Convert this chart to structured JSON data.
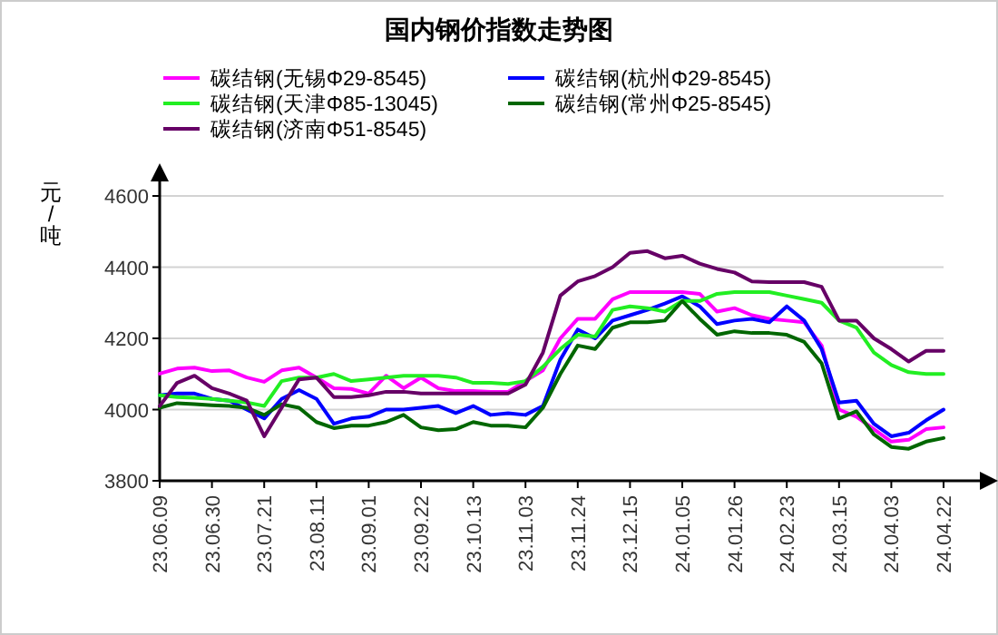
{
  "chart_data": {
    "type": "line",
    "title": "国内钢价指数走势图",
    "ylabel": "元/吨",
    "categories": [
      "23.06.09",
      null,
      null,
      "23.06.30",
      null,
      null,
      "23.07.21",
      null,
      null,
      "23.08.11",
      null,
      null,
      "23.09.01",
      null,
      null,
      "23.09.22",
      null,
      null,
      "23.10.13",
      null,
      null,
      "23.11.03",
      null,
      null,
      "23.11.24",
      null,
      null,
      "23.12.15",
      null,
      null,
      "24.01.05",
      null,
      null,
      "24.01.26",
      null,
      null,
      "24.02.23",
      null,
      null,
      "24.03.15",
      null,
      null,
      "24.04.03",
      null,
      null,
      "24.04.22"
    ],
    "series": [
      {
        "name": "碳结钢(无锡Φ29-8545)",
        "color": "#ff00ff",
        "values": [
          4101,
          4115,
          4118,
          4108,
          4110,
          4090,
          4078,
          4110,
          4118,
          4090,
          4060,
          4058,
          4045,
          4095,
          4060,
          4090,
          4060,
          4052,
          4052,
          4050,
          4050,
          4080,
          4110,
          4200,
          4255,
          4255,
          4310,
          4330,
          4330,
          4330,
          4330,
          4325,
          4275,
          4285,
          4265,
          4255,
          4250,
          4245,
          4180,
          4000,
          3980,
          3945,
          3910,
          3915,
          3945,
          3950
        ]
      },
      {
        "name": "碳结钢(杭州Φ29-8545)",
        "color": "#0000ff",
        "values": [
          4040,
          4045,
          4045,
          4030,
          4025,
          4000,
          3975,
          4030,
          4055,
          4030,
          3960,
          3975,
          3980,
          4000,
          4000,
          4005,
          4010,
          3990,
          4010,
          3985,
          3990,
          3985,
          4010,
          4140,
          4225,
          4200,
          4250,
          4265,
          4280,
          4298,
          4318,
          4290,
          4240,
          4250,
          4255,
          4245,
          4290,
          4250,
          4170,
          4020,
          4025,
          3960,
          3925,
          3935,
          3970,
          4000
        ]
      },
      {
        "name": "碳结钢(天津Φ85-13045)",
        "color": "#22ee22",
        "values": [
          4040,
          4035,
          4033,
          4030,
          4025,
          4020,
          4010,
          4080,
          4090,
          4090,
          4100,
          4080,
          4085,
          4090,
          4095,
          4095,
          4095,
          4090,
          4075,
          4075,
          4072,
          4080,
          4120,
          4170,
          4210,
          4205,
          4280,
          4290,
          4285,
          4275,
          4305,
          4305,
          4325,
          4330,
          4330,
          4330,
          4320,
          4310,
          4300,
          4250,
          4230,
          4160,
          4125,
          4105,
          4100,
          4100
        ]
      },
      {
        "name": "碳结钢(常州Φ25-8545)",
        "color": "#006600",
        "values": [
          4005,
          4018,
          4015,
          4012,
          4010,
          4005,
          3985,
          4015,
          4005,
          3965,
          3948,
          3955,
          3955,
          3965,
          3985,
          3950,
          3942,
          3945,
          3965,
          3955,
          3955,
          3950,
          4005,
          4100,
          4180,
          4170,
          4230,
          4245,
          4245,
          4250,
          4305,
          4255,
          4210,
          4220,
          4215,
          4215,
          4210,
          4190,
          4130,
          3975,
          3995,
          3930,
          3895,
          3890,
          3910,
          3920
        ]
      },
      {
        "name": "碳结钢(济南Φ51-8545)",
        "color": "#660066",
        "values": [
          4010,
          4075,
          4095,
          4060,
          4045,
          4025,
          3925,
          4005,
          4085,
          4090,
          4035,
          4035,
          4040,
          4050,
          4050,
          4045,
          4045,
          4045,
          4045,
          4045,
          4045,
          4070,
          4160,
          4320,
          4360,
          4375,
          4400,
          4440,
          4445,
          4425,
          4432,
          4410,
          4395,
          4385,
          4360,
          4358,
          4358,
          4358,
          4345,
          4250,
          4250,
          4200,
          4170,
          4135,
          4165,
          4165
        ]
      }
    ],
    "ylim": [
      3800,
      4600
    ],
    "yticks": [
      3800,
      4000,
      4200,
      4400,
      4600
    ],
    "grid": "y",
    "legend": "top",
    "marker": "none",
    "line_style": "solid"
  }
}
